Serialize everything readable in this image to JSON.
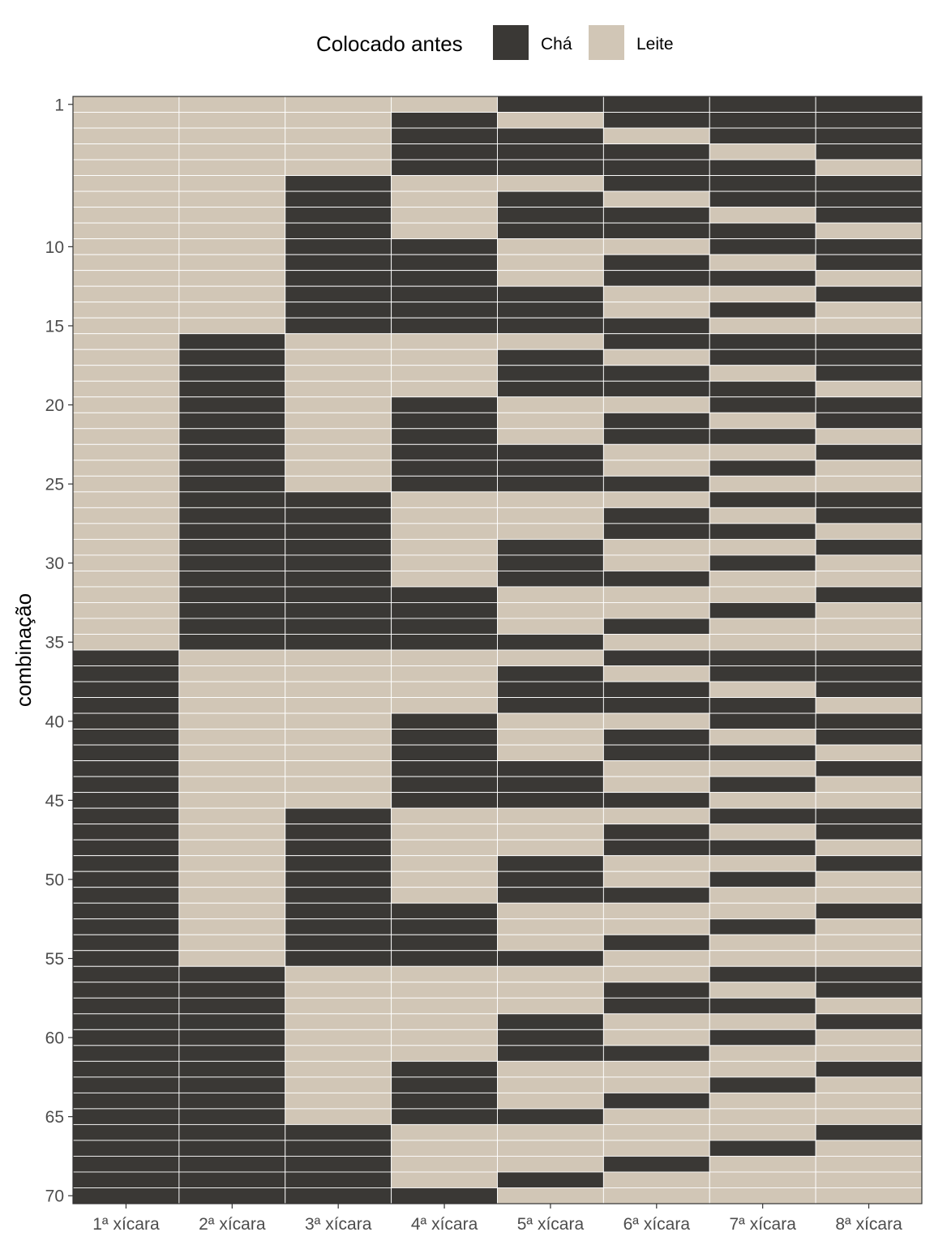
{
  "colors": {
    "cha": "#3a3835",
    "leite": "#d1c6b6",
    "grid": "#ffffff",
    "panel_border": "#333333",
    "tick": "#333333"
  },
  "legend": {
    "title": "Colocado antes",
    "items": [
      {
        "label": "Chá",
        "key": "cha"
      },
      {
        "label": "Leite",
        "key": "leite"
      }
    ]
  },
  "chart_data": {
    "type": "heatmap",
    "ylabel": "combinação",
    "xlabel": "",
    "categories": [
      "1ª xícara",
      "2ª xícara",
      "3ª xícara",
      "4ª xícara",
      "5ª xícara",
      "6ª xícara",
      "7ª xícara",
      "8ª xícara"
    ],
    "y_ticks": [
      1,
      10,
      15,
      20,
      25,
      30,
      35,
      40,
      45,
      50,
      55,
      60,
      65,
      70
    ],
    "ylim": [
      1,
      70
    ],
    "encoding": "each row lists the cups where Chá was placed first; all other cups are Leite",
    "combinations_cha_cups": [
      [
        5,
        6,
        7,
        8
      ],
      [
        4,
        6,
        7,
        8
      ],
      [
        4,
        5,
        7,
        8
      ],
      [
        4,
        5,
        6,
        8
      ],
      [
        4,
        5,
        6,
        7
      ],
      [
        3,
        6,
        7,
        8
      ],
      [
        3,
        5,
        7,
        8
      ],
      [
        3,
        5,
        6,
        8
      ],
      [
        3,
        5,
        6,
        7
      ],
      [
        3,
        4,
        7,
        8
      ],
      [
        3,
        4,
        6,
        8
      ],
      [
        3,
        4,
        6,
        7
      ],
      [
        3,
        4,
        5,
        8
      ],
      [
        3,
        4,
        5,
        7
      ],
      [
        3,
        4,
        5,
        6
      ],
      [
        2,
        6,
        7,
        8
      ],
      [
        2,
        5,
        7,
        8
      ],
      [
        2,
        5,
        6,
        8
      ],
      [
        2,
        5,
        6,
        7
      ],
      [
        2,
        4,
        7,
        8
      ],
      [
        2,
        4,
        6,
        8
      ],
      [
        2,
        4,
        6,
        7
      ],
      [
        2,
        4,
        5,
        8
      ],
      [
        2,
        4,
        5,
        7
      ],
      [
        2,
        4,
        5,
        6
      ],
      [
        2,
        3,
        7,
        8
      ],
      [
        2,
        3,
        6,
        8
      ],
      [
        2,
        3,
        6,
        7
      ],
      [
        2,
        3,
        5,
        8
      ],
      [
        2,
        3,
        5,
        7
      ],
      [
        2,
        3,
        5,
        6
      ],
      [
        2,
        3,
        4,
        8
      ],
      [
        2,
        3,
        4,
        7
      ],
      [
        2,
        3,
        4,
        6
      ],
      [
        2,
        3,
        4,
        5
      ],
      [
        1,
        6,
        7,
        8
      ],
      [
        1,
        5,
        7,
        8
      ],
      [
        1,
        5,
        6,
        8
      ],
      [
        1,
        5,
        6,
        7
      ],
      [
        1,
        4,
        7,
        8
      ],
      [
        1,
        4,
        6,
        8
      ],
      [
        1,
        4,
        6,
        7
      ],
      [
        1,
        4,
        5,
        8
      ],
      [
        1,
        4,
        5,
        7
      ],
      [
        1,
        4,
        5,
        6
      ],
      [
        1,
        3,
        7,
        8
      ],
      [
        1,
        3,
        6,
        8
      ],
      [
        1,
        3,
        6,
        7
      ],
      [
        1,
        3,
        5,
        8
      ],
      [
        1,
        3,
        5,
        7
      ],
      [
        1,
        3,
        5,
        6
      ],
      [
        1,
        3,
        4,
        8
      ],
      [
        1,
        3,
        4,
        7
      ],
      [
        1,
        3,
        4,
        6
      ],
      [
        1,
        3,
        4,
        5
      ],
      [
        1,
        2,
        7,
        8
      ],
      [
        1,
        2,
        6,
        8
      ],
      [
        1,
        2,
        6,
        7
      ],
      [
        1,
        2,
        5,
        8
      ],
      [
        1,
        2,
        5,
        7
      ],
      [
        1,
        2,
        5,
        6
      ],
      [
        1,
        2,
        4,
        8
      ],
      [
        1,
        2,
        4,
        7
      ],
      [
        1,
        2,
        4,
        6
      ],
      [
        1,
        2,
        4,
        5
      ],
      [
        1,
        2,
        3,
        8
      ],
      [
        1,
        2,
        3,
        7
      ],
      [
        1,
        2,
        3,
        6
      ],
      [
        1,
        2,
        3,
        5
      ],
      [
        1,
        2,
        3,
        4
      ]
    ]
  }
}
